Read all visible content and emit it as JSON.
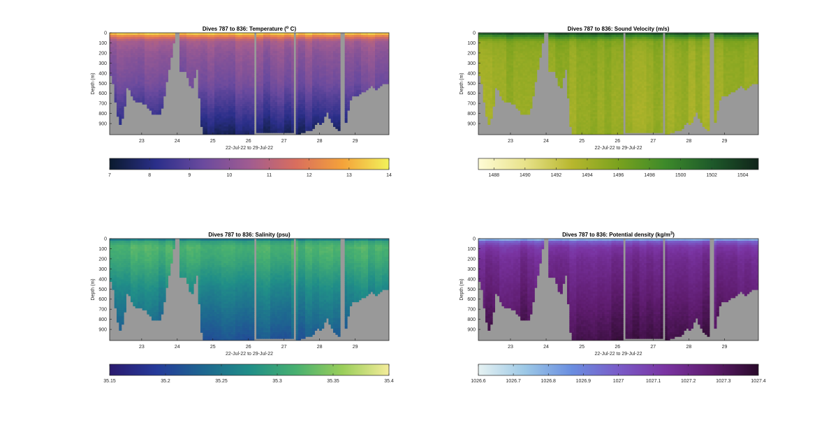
{
  "figure": {
    "shared": {
      "xlabel": "22-Jul-22 to 29-Jul-22",
      "ylabel": "Depth (m)",
      "xticks": [
        "23",
        "24",
        "25",
        "26",
        "27",
        "28",
        "29"
      ],
      "yticks": [
        "0",
        "100",
        "200",
        "300",
        "400",
        "500",
        "600",
        "700",
        "800",
        "900"
      ]
    }
  },
  "chart_data": [
    {
      "type": "heatmap",
      "title": "Dives 787 to 836: Temperature (",
      "title_sup": "o",
      "title_tail": " C)",
      "xlabel": "22-Jul-22 to 29-Jul-22",
      "ylabel": "Depth (m)",
      "x_range": [
        22.1,
        29.95
      ],
      "y_range": [
        0,
        1010
      ],
      "y_reversed": true,
      "colormap": "thermal",
      "colors": [
        "#0a1a2e",
        "#2b2f8a",
        "#6a4a9e",
        "#a05c91",
        "#d96e5e",
        "#f4a23a",
        "#f2f25a"
      ],
      "clim": [
        7,
        14
      ],
      "colorbar_ticks": [
        "7",
        "8",
        "9",
        "10",
        "11",
        "12",
        "13",
        "14"
      ],
      "colorbar_values": [
        7,
        8,
        9,
        10,
        11,
        12,
        13,
        14
      ],
      "missing_color": "#999999",
      "profile": {
        "depth": [
          0,
          30,
          80,
          200,
          500,
          800,
          1000
        ],
        "value": [
          13.9,
          12.3,
          10.6,
          10.1,
          9.5,
          8.4,
          7.6
        ]
      },
      "gaps_x": [
        [
          23.95,
          24.05
        ],
        [
          26.15,
          26.25
        ],
        [
          27.25,
          27.35
        ],
        [
          28.55,
          28.7
        ]
      ]
    },
    {
      "type": "heatmap",
      "title": "Dives 787 to 836: Sound Velocity (m/s)",
      "title_sup": "",
      "title_tail": "",
      "xlabel": "22-Jul-22 to 29-Jul-22",
      "ylabel": "Depth (m)",
      "x_range": [
        22.1,
        29.95
      ],
      "y_range": [
        0,
        1010
      ],
      "y_reversed": true,
      "colormap": "speed",
      "colors": [
        "#fffcd6",
        "#e8e28a",
        "#b8b72e",
        "#7aa21e",
        "#3d8a2a",
        "#1e5a2a",
        "#10241a"
      ],
      "clim": [
        1487,
        1505
      ],
      "colorbar_ticks": [
        "1488",
        "1490",
        "1492",
        "1494",
        "1496",
        "1498",
        "1500",
        "1502",
        "1504"
      ],
      "colorbar_values": [
        1488,
        1490,
        1492,
        1494,
        1496,
        1498,
        1500,
        1502,
        1504
      ],
      "missing_color": "#999999",
      "profile": {
        "depth": [
          0,
          30,
          80,
          200,
          500,
          800,
          1000
        ],
        "value": [
          1503.5,
          1499.5,
          1495.5,
          1494.8,
          1494.5,
          1494.3,
          1494.6
        ]
      },
      "gaps_x": [
        [
          23.95,
          24.05
        ],
        [
          26.15,
          26.25
        ],
        [
          27.25,
          27.35
        ],
        [
          28.55,
          28.7
        ]
      ]
    },
    {
      "type": "heatmap",
      "title": "Dives 787 to 836: Salinity (psu)",
      "title_sup": "",
      "title_tail": "",
      "xlabel": "22-Jul-22 to 29-Jul-22",
      "ylabel": "Depth (m)",
      "x_range": [
        22.1,
        29.95
      ],
      "y_range": [
        0,
        1010
      ],
      "y_reversed": true,
      "colormap": "haline",
      "colors": [
        "#2a1a6e",
        "#253a9a",
        "#1e6690",
        "#208e88",
        "#48b070",
        "#9ace5a",
        "#f4ec9a"
      ],
      "clim": [
        35.15,
        35.4
      ],
      "colorbar_ticks": [
        "35.15",
        "35.2",
        "35.25",
        "35.3",
        "35.35",
        "35.4"
      ],
      "colorbar_values": [
        35.15,
        35.2,
        35.25,
        35.3,
        35.35,
        35.4
      ],
      "missing_color": "#999999",
      "profile": {
        "depth": [
          0,
          30,
          80,
          200,
          500,
          800,
          1000
        ],
        "value": [
          35.24,
          35.3,
          35.32,
          35.31,
          35.27,
          35.24,
          35.22
        ]
      },
      "gaps_x": [
        [
          23.95,
          24.05
        ],
        [
          26.15,
          26.25
        ],
        [
          27.25,
          27.35
        ],
        [
          28.55,
          28.7
        ]
      ]
    },
    {
      "type": "heatmap",
      "title": "Dives 787 to 836: Potential density (kg/m",
      "title_sup": "3",
      "title_tail": ")",
      "xlabel": "22-Jul-22 to 29-Jul-22",
      "ylabel": "Depth (m)",
      "x_range": [
        22.1,
        29.95
      ],
      "y_range": [
        0,
        1010
      ],
      "y_reversed": true,
      "colormap": "dense",
      "colors": [
        "#e6f2f2",
        "#9cc8e6",
        "#6a8ee0",
        "#7a5cc8",
        "#7a34a2",
        "#5e1c6e",
        "#2a0a2a"
      ],
      "clim": [
        1026.6,
        1027.4
      ],
      "colorbar_ticks": [
        "1026.6",
        "1026.7",
        "1026.8",
        "1026.9",
        "1027",
        "1027.1",
        "1027.2",
        "1027.3",
        "1027.4"
      ],
      "colorbar_values": [
        1026.6,
        1026.7,
        1026.8,
        1026.9,
        1027.0,
        1027.1,
        1027.2,
        1027.3,
        1027.4
      ],
      "missing_color": "#999999",
      "profile": {
        "depth": [
          0,
          30,
          80,
          200,
          500,
          800,
          1000
        ],
        "value": [
          1026.7,
          1027.0,
          1027.12,
          1027.18,
          1027.24,
          1027.3,
          1027.34
        ]
      },
      "gaps_x": [
        [
          23.95,
          24.05
        ],
        [
          26.15,
          26.25
        ],
        [
          27.25,
          27.35
        ],
        [
          28.55,
          28.7
        ]
      ]
    }
  ]
}
